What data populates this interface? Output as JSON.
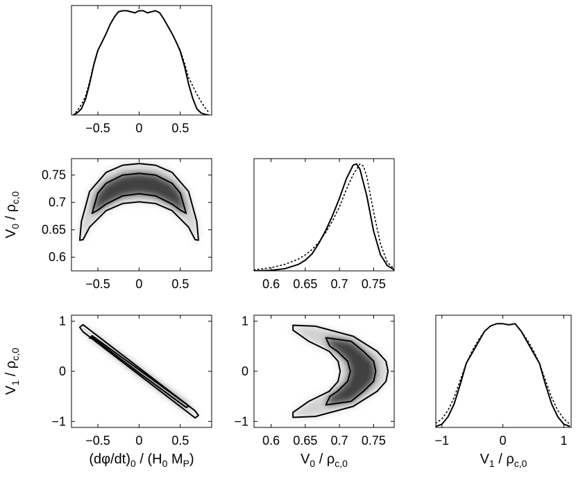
{
  "chart_data": {
    "type": "corner-plot",
    "panels": [
      {
        "id": "p11",
        "type": "line",
        "row": 1,
        "col": 1,
        "xlim": [
          -0.82,
          0.88
        ],
        "ylim": [
          0,
          1.05
        ],
        "xticks": [
          -0.5,
          0,
          0.5
        ],
        "xtick_labels": [
          "−0.5",
          "0",
          "0.5"
        ],
        "yticks": [],
        "ytick_labels": [],
        "series": [
          {
            "style": "solid",
            "x": [
              -0.8,
              -0.75,
              -0.7,
              -0.65,
              -0.6,
              -0.55,
              -0.5,
              -0.45,
              -0.4,
              -0.35,
              -0.3,
              -0.25,
              -0.2,
              -0.15,
              -0.1,
              -0.05,
              0,
              0.05,
              0.1,
              0.15,
              0.2,
              0.25,
              0.3,
              0.35,
              0.4,
              0.45,
              0.5,
              0.55,
              0.6,
              0.65,
              0.7,
              0.75,
              0.8,
              0.85
            ],
            "y": [
              0,
              0.02,
              0.06,
              0.15,
              0.3,
              0.48,
              0.62,
              0.7,
              0.78,
              0.87,
              0.94,
              0.99,
              1.0,
              1.0,
              0.99,
              0.98,
              1.0,
              1.0,
              0.98,
              0.99,
              1.0,
              0.98,
              0.92,
              0.85,
              0.78,
              0.7,
              0.61,
              0.47,
              0.3,
              0.16,
              0.06,
              0.02,
              0.005,
              0
            ]
          },
          {
            "style": "dotted",
            "x": [
              -0.8,
              -0.75,
              -0.7,
              -0.65,
              -0.6,
              -0.55,
              -0.5,
              -0.45,
              -0.4,
              -0.35,
              -0.3,
              -0.25,
              -0.2,
              -0.15,
              -0.1,
              -0.05,
              0,
              0.05,
              0.1,
              0.15,
              0.2,
              0.25,
              0.3,
              0.35,
              0.4,
              0.45,
              0.5,
              0.55,
              0.6,
              0.65,
              0.7,
              0.75,
              0.8,
              0.85
            ],
            "y": [
              0,
              0.04,
              0.1,
              0.18,
              0.32,
              0.49,
              0.62,
              0.7,
              0.78,
              0.87,
              0.94,
              0.99,
              1.0,
              1.0,
              0.99,
              0.98,
              1.0,
              1.0,
              0.98,
              0.99,
              1.0,
              0.98,
              0.92,
              0.85,
              0.78,
              0.7,
              0.62,
              0.5,
              0.36,
              0.28,
              0.2,
              0.13,
              0.07,
              0.02
            ]
          }
        ]
      },
      {
        "id": "p21",
        "type": "contour",
        "row": 2,
        "col": 1,
        "xlim": [
          -0.82,
          0.88
        ],
        "ylim": [
          0.575,
          0.78
        ],
        "xticks": [
          -0.5,
          0,
          0.5
        ],
        "xtick_labels": [
          "−0.5",
          "0",
          "0.5"
        ],
        "yticks": [
          0.6,
          0.65,
          0.7,
          0.75
        ],
        "ytick_labels": [
          "0.6",
          "0.65",
          "0.7",
          "0.75"
        ],
        "ylabel": {
          "base": "V",
          "sub": "0",
          "mid": " / ρ",
          "sub2": "c,0"
        },
        "contours": [
          {
            "level": "outer",
            "x": [
              -0.72,
              -0.7,
              -0.6,
              -0.4,
              -0.2,
              0,
              0.2,
              0.4,
              0.6,
              0.7,
              0.72,
              0.68,
              0.6,
              0.4,
              0.2,
              0,
              -0.2,
              -0.4,
              -0.6,
              -0.68,
              -0.72
            ],
            "y": [
              0.631,
              0.665,
              0.72,
              0.755,
              0.768,
              0.771,
              0.768,
              0.755,
              0.72,
              0.665,
              0.631,
              0.632,
              0.655,
              0.685,
              0.698,
              0.701,
              0.698,
              0.685,
              0.655,
              0.632,
              0.631
            ]
          },
          {
            "level": "inner",
            "x": [
              -0.57,
              -0.5,
              -0.4,
              -0.2,
              0,
              0.2,
              0.4,
              0.5,
              0.57,
              0.5,
              0.4,
              0.2,
              0,
              -0.2,
              -0.4,
              -0.5,
              -0.57
            ],
            "y": [
              0.68,
              0.717,
              0.735,
              0.75,
              0.753,
              0.75,
              0.735,
              0.717,
              0.68,
              0.686,
              0.697,
              0.712,
              0.716,
              0.712,
              0.697,
              0.686,
              0.68
            ]
          }
        ]
      },
      {
        "id": "p22",
        "type": "line",
        "row": 2,
        "col": 2,
        "xlim": [
          0.575,
          0.78
        ],
        "ylim": [
          0,
          1.05
        ],
        "xticks": [
          0.6,
          0.65,
          0.7,
          0.75
        ],
        "xtick_labels": [
          "0.6",
          "0.65",
          "0.7",
          "0.75"
        ],
        "yticks": [],
        "ytick_labels": [],
        "series": [
          {
            "style": "solid",
            "x": [
              0.575,
              0.6,
              0.62,
              0.64,
              0.65,
              0.66,
              0.67,
              0.68,
              0.69,
              0.7,
              0.71,
              0.72,
              0.725,
              0.73,
              0.74,
              0.75,
              0.76,
              0.77,
              0.78
            ],
            "y": [
              0,
              0.005,
              0.02,
              0.06,
              0.1,
              0.16,
              0.26,
              0.38,
              0.52,
              0.68,
              0.86,
              0.99,
              1.0,
              0.95,
              0.7,
              0.37,
              0.15,
              0.05,
              0.01
            ]
          },
          {
            "style": "dotted",
            "x": [
              0.575,
              0.6,
              0.62,
              0.64,
              0.65,
              0.66,
              0.67,
              0.68,
              0.69,
              0.7,
              0.71,
              0.72,
              0.73,
              0.735,
              0.74,
              0.75,
              0.76,
              0.77,
              0.78
            ],
            "y": [
              0.01,
              0.03,
              0.06,
              0.11,
              0.15,
              0.2,
              0.27,
              0.36,
              0.47,
              0.6,
              0.76,
              0.9,
              1.0,
              0.98,
              0.88,
              0.55,
              0.25,
              0.08,
              0.02
            ]
          }
        ]
      },
      {
        "id": "p31",
        "type": "contour",
        "row": 3,
        "col": 1,
        "xlim": [
          -0.82,
          0.88
        ],
        "ylim": [
          -1.12,
          1.12
        ],
        "xticks": [
          -0.5,
          0,
          0.5
        ],
        "xtick_labels": [
          "−0.5",
          "0",
          "0.5"
        ],
        "yticks": [
          -1,
          0,
          1
        ],
        "ytick_labels": [
          "−1",
          "0",
          "1"
        ],
        "xlabel": {
          "pre": "(dφ/dt)",
          "sub": "0",
          "mid": " / (H",
          "sub2": "0",
          "post": " M",
          "sub3": "P",
          "end": ")"
        },
        "ylabel": {
          "base": "V",
          "sub": "1",
          "mid": " / ρ",
          "sub2": "c,0"
        },
        "contours": [
          {
            "level": "outer",
            "x": [
              -0.72,
              -0.68,
              0.0,
              0.68,
              0.72,
              0.68,
              0.0,
              -0.68,
              -0.72
            ],
            "y": [
              0.88,
              0.93,
              0.07,
              -0.79,
              -0.88,
              -0.93,
              -0.07,
              0.79,
              0.88
            ]
          },
          {
            "level": "inner",
            "x": [
              -0.6,
              -0.57,
              0.0,
              0.57,
              0.6,
              0.57,
              0.0,
              -0.57,
              -0.6
            ],
            "y": [
              0.66,
              0.71,
              0.03,
              -0.65,
              -0.7,
              -0.72,
              -0.03,
              0.68,
              0.66
            ]
          }
        ]
      },
      {
        "id": "p32",
        "type": "contour",
        "row": 3,
        "col": 2,
        "xlim": [
          0.575,
          0.78
        ],
        "ylim": [
          -1.12,
          1.12
        ],
        "xticks": [
          0.6,
          0.65,
          0.7,
          0.75
        ],
        "xtick_labels": [
          "0.6",
          "0.65",
          "0.7",
          "0.75"
        ],
        "yticks": [
          -1,
          0,
          1
        ],
        "ytick_labels": [
          "−1",
          "0",
          "1"
        ],
        "xlabel": {
          "pre": "V",
          "sub": "0",
          "mid": " / ρ",
          "sub2": "c,0"
        },
        "contours": [
          {
            "level": "outer",
            "x": [
              0.632,
              0.665,
              0.72,
              0.755,
              0.768,
              0.771,
              0.768,
              0.755,
              0.72,
              0.665,
              0.632,
              0.632,
              0.655,
              0.685,
              0.698,
              0.701,
              0.698,
              0.685,
              0.655,
              0.632
            ],
            "y": [
              0.92,
              0.9,
              0.7,
              0.4,
              0.2,
              0.0,
              -0.2,
              -0.4,
              -0.7,
              -0.9,
              -0.92,
              -0.82,
              -0.6,
              -0.4,
              -0.2,
              0.0,
              0.2,
              0.4,
              0.6,
              0.82
            ]
          },
          {
            "level": "inner",
            "x": [
              0.68,
              0.717,
              0.735,
              0.75,
              0.753,
              0.75,
              0.735,
              0.717,
              0.68,
              0.686,
              0.697,
              0.712,
              0.716,
              0.712,
              0.697,
              0.686
            ],
            "y": [
              0.67,
              0.6,
              0.4,
              0.2,
              0.0,
              -0.2,
              -0.4,
              -0.6,
              -0.67,
              -0.5,
              -0.4,
              -0.2,
              0.0,
              0.2,
              0.4,
              0.5
            ]
          }
        ]
      },
      {
        "id": "p33",
        "type": "line",
        "row": 3,
        "col": 3,
        "xlim": [
          -1.1,
          1.12
        ],
        "ylim": [
          0,
          1.05
        ],
        "xticks": [
          -1,
          0,
          1
        ],
        "xtick_labels": [
          "−1",
          "0",
          "1"
        ],
        "yticks": [],
        "ytick_labels": [],
        "xlabel": {
          "pre": "V",
          "sub": "1",
          "mid": " / ρ",
          "sub2": "c,0"
        },
        "series": [
          {
            "style": "solid",
            "x": [
              -1.1,
              -1.0,
              -0.9,
              -0.8,
              -0.7,
              -0.6,
              -0.5,
              -0.4,
              -0.3,
              -0.2,
              -0.1,
              0,
              0.1,
              0.2,
              0.3,
              0.4,
              0.5,
              0.6,
              0.7,
              0.8,
              0.9,
              1.0,
              1.1
            ],
            "y": [
              0.01,
              0.03,
              0.1,
              0.22,
              0.4,
              0.6,
              0.7,
              0.8,
              0.9,
              0.95,
              0.97,
              0.97,
              0.96,
              0.97,
              0.9,
              0.8,
              0.7,
              0.6,
              0.4,
              0.22,
              0.1,
              0.03,
              0.01
            ]
          },
          {
            "style": "dotted",
            "x": [
              -1.1,
              -1.0,
              -0.9,
              -0.8,
              -0.7,
              -0.6,
              -0.5,
              -0.4,
              -0.3,
              -0.2,
              -0.1,
              0,
              0.1,
              0.2,
              0.3,
              0.4,
              0.5,
              0.6,
              0.7,
              0.8,
              0.9,
              1.0,
              1.1
            ],
            "y": [
              0.04,
              0.08,
              0.16,
              0.28,
              0.44,
              0.6,
              0.72,
              0.82,
              0.9,
              0.95,
              0.97,
              0.97,
              0.96,
              0.97,
              0.9,
              0.82,
              0.72,
              0.6,
              0.44,
              0.28,
              0.16,
              0.08,
              0.03
            ]
          }
        ]
      }
    ]
  }
}
